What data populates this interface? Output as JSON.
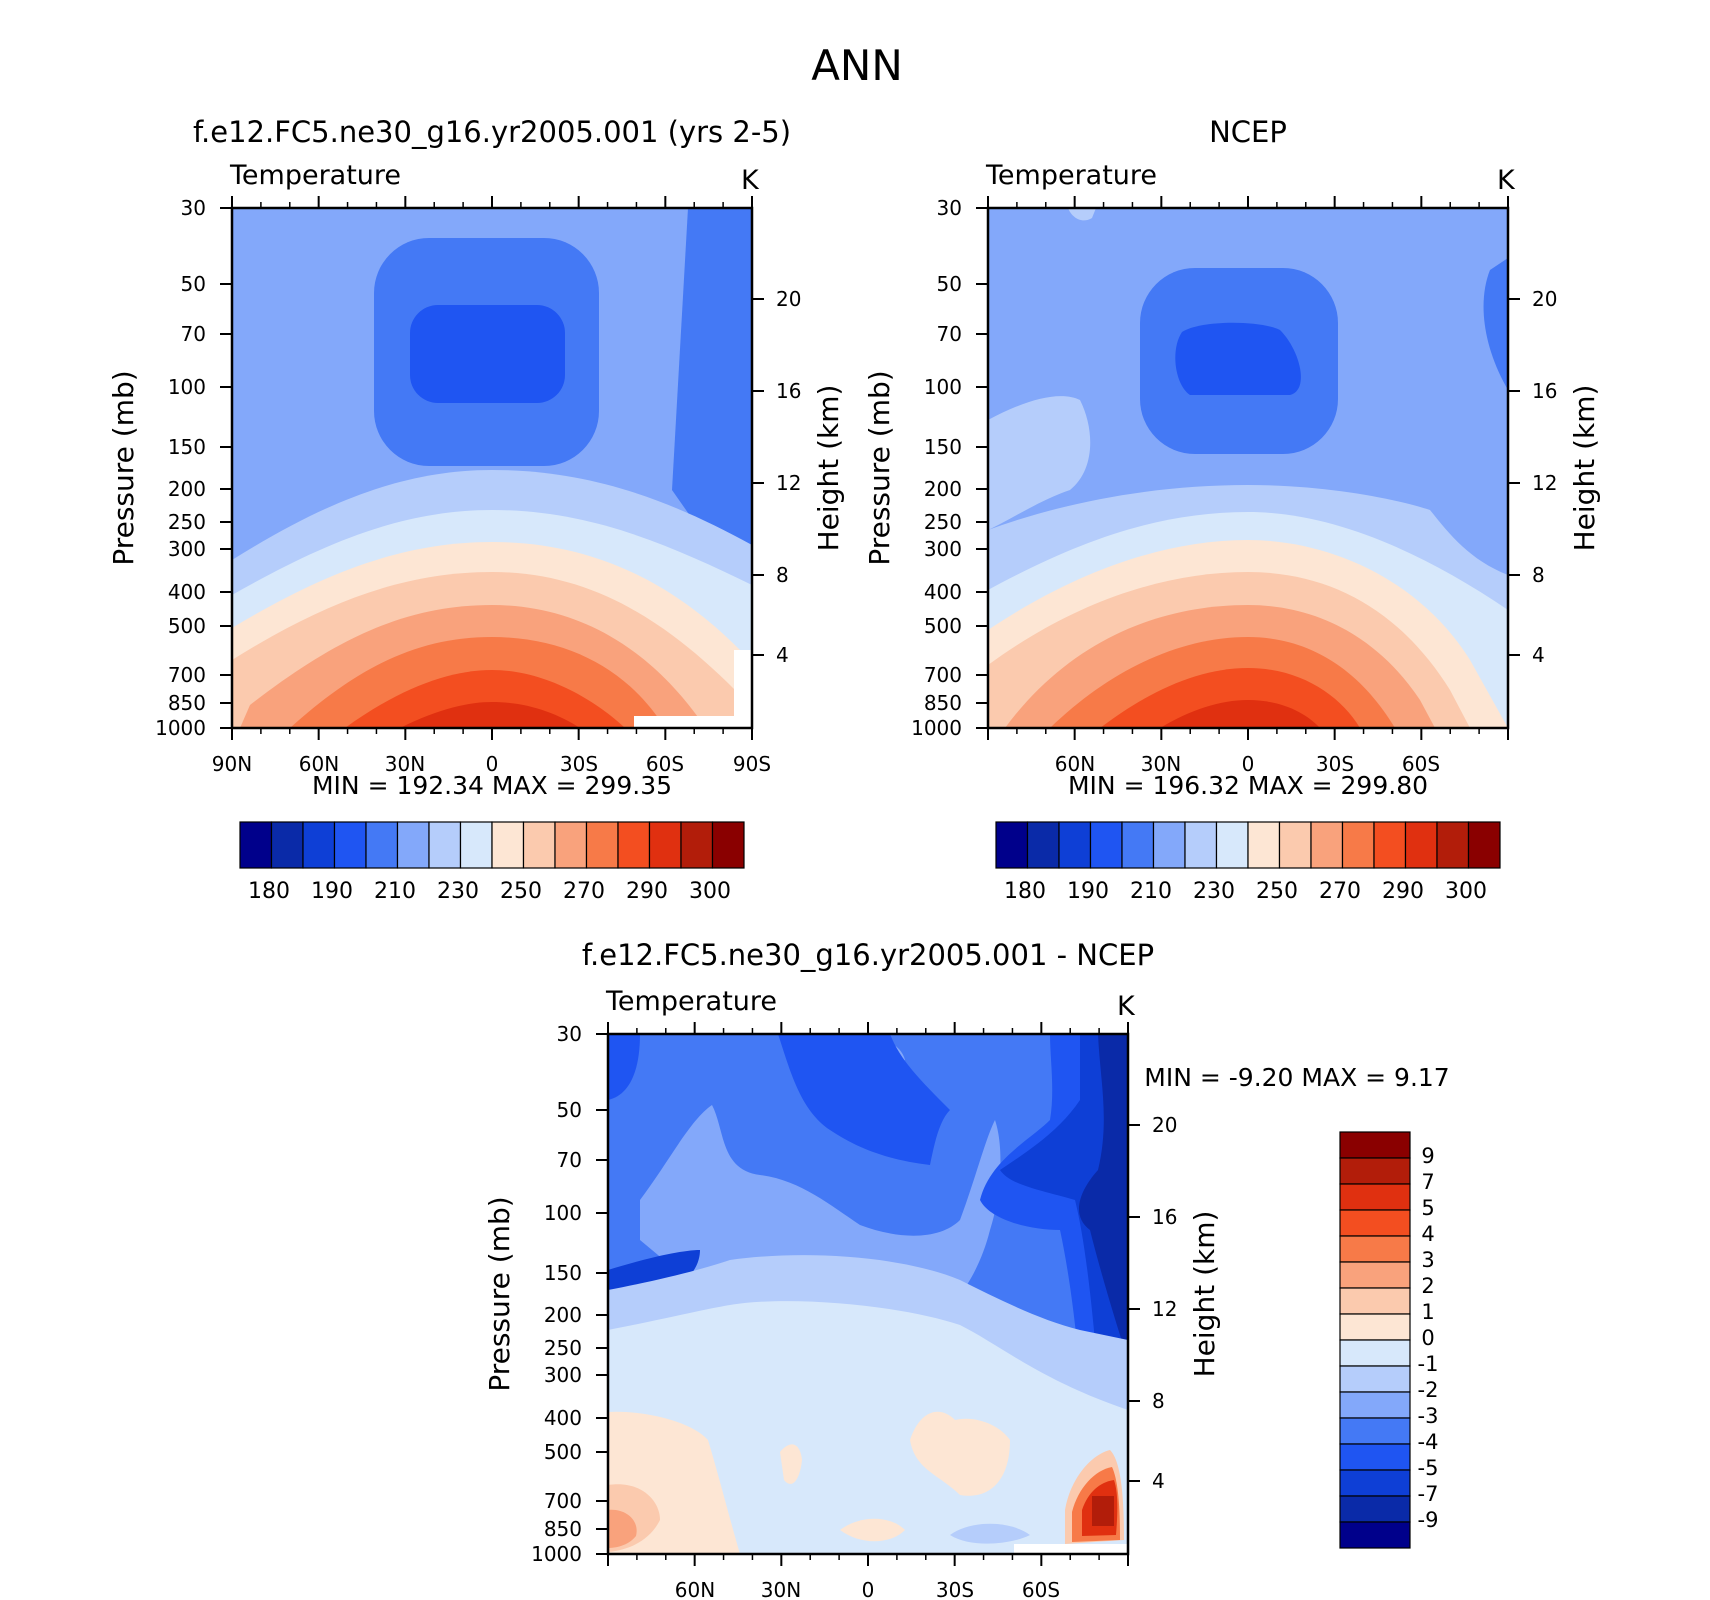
{
  "page": {
    "title": "ANN"
  },
  "chart_data": [
    {
      "type": "heatmap",
      "panel_title": "f.e12.FC5.ne30_g16.yr2005.001 (yrs 2-5)",
      "variable_label": "Temperature",
      "units": "K",
      "ylabel": "Pressure (mb)",
      "ylabel_right": "Height (km)",
      "x_ticklabels": [
        "90N",
        "60N",
        "30N",
        "0",
        "30S",
        "60S",
        "90S"
      ],
      "y_ticklabels": [
        "30",
        "50",
        "70",
        "100",
        "150",
        "200",
        "250",
        "300",
        "400",
        "500",
        "700",
        "850",
        "1000"
      ],
      "height_ticklabels": [
        "20",
        "16",
        "12",
        "8",
        "4"
      ],
      "stats": "MIN = 192.34 MAX = 299.35",
      "colorbar_ticklabels": [
        "180",
        "190",
        "210",
        "230",
        "250",
        "270",
        "290",
        "300"
      ],
      "min": 192.34,
      "max": 299.35
    },
    {
      "type": "heatmap",
      "panel_title": "NCEP",
      "variable_label": "Temperature",
      "units": "K",
      "ylabel": "Pressure (mb)",
      "ylabel_right": "Height (km)",
      "x_ticklabels": [
        "60N",
        "30N",
        "0",
        "30S",
        "60S"
      ],
      "y_ticklabels": [
        "30",
        "50",
        "70",
        "100",
        "150",
        "200",
        "250",
        "300",
        "400",
        "500",
        "700",
        "850",
        "1000"
      ],
      "height_ticklabels": [
        "20",
        "16",
        "12",
        "8",
        "4"
      ],
      "stats": "MIN = 196.32 MAX = 299.80",
      "colorbar_ticklabels": [
        "180",
        "190",
        "210",
        "230",
        "250",
        "270",
        "290",
        "300"
      ],
      "min": 196.32,
      "max": 299.8
    },
    {
      "type": "heatmap",
      "panel_title": "f.e12.FC5.ne30_g16.yr2005.001 - NCEP",
      "variable_label": "Temperature",
      "units": "K",
      "ylabel": "Pressure (mb)",
      "ylabel_right": "Height (km)",
      "x_ticklabels": [
        "60N",
        "30N",
        "0",
        "30S",
        "60S"
      ],
      "y_ticklabels": [
        "30",
        "50",
        "70",
        "100",
        "150",
        "200",
        "250",
        "300",
        "400",
        "500",
        "700",
        "850",
        "1000"
      ],
      "height_ticklabels": [
        "20",
        "16",
        "12",
        "8",
        "4"
      ],
      "stats": "MIN = -9.20 MAX = 9.17",
      "colorbar_ticklabels": [
        "9",
        "7",
        "5",
        "4",
        "3",
        "2",
        "1",
        "0",
        "-1",
        "-2",
        "-3",
        "-4",
        "-5",
        "-7",
        "-9"
      ],
      "min": -9.2,
      "max": 9.17
    }
  ],
  "colors": {
    "temperature_scale": [
      "#00008b",
      "#0a2aa8",
      "#0e3fd6",
      "#1f55f2",
      "#4479f5",
      "#83a8fa",
      "#b5cdfb",
      "#d7e8fb",
      "#fde6d4",
      "#fbcaae",
      "#f9a27c",
      "#f77a48",
      "#f34e20",
      "#e03010",
      "#b21d0a",
      "#8a0000"
    ],
    "difference_scale": [
      "#8a0000",
      "#b21d0a",
      "#e03010",
      "#f34e20",
      "#f77a48",
      "#f9a27c",
      "#fbcaae",
      "#fde6d4",
      "#d7e8fb",
      "#b5cdfb",
      "#83a8fa",
      "#4479f5",
      "#1f55f2",
      "#0e3fd6",
      "#0a2aa8",
      "#00008b"
    ]
  }
}
